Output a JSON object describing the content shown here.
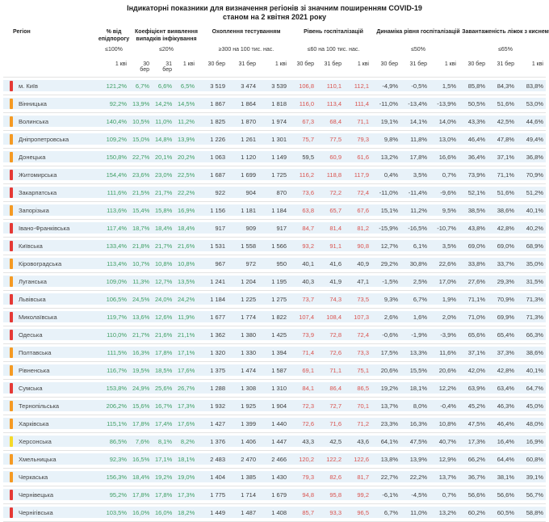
{
  "title": {
    "line1": "Індикаторні показники для визначення регіонів зі значним поширенням COVID-19",
    "line2": "станом на 2 квітня 2021 року"
  },
  "columns": {
    "region": "Регіон",
    "groups": [
      {
        "name": "% від епідпорогу",
        "threshold": "≤100%",
        "dates": [
          "1 кві"
        ]
      },
      {
        "name": "Коефіцієнт виявлення випадків інфікування",
        "threshold": "≤20%",
        "dates": [
          "30 бер",
          "31 бер",
          "1 кві"
        ]
      },
      {
        "name": "Охоплення тестуванням",
        "threshold": "≥300 на 100 тис. нас.",
        "dates": [
          "30 бер",
          "31 бер",
          "1 кві"
        ]
      },
      {
        "name": "Рівень госпіталізацій",
        "threshold": "≤60 на 100 тис. нас.",
        "dates": [
          "30 бер",
          "31 бер",
          "1 кві"
        ]
      },
      {
        "name": "Динаміка рівня госпіталізацій",
        "threshold": "≤50%",
        "dates": [
          "30 бер",
          "31 бер",
          "1 кві"
        ]
      },
      {
        "name": "Завантаженість ліжок з киснем",
        "threshold": "≤65%",
        "dates": [
          "30 бер",
          "31 бер",
          "1 кві"
        ]
      }
    ]
  },
  "colors": {
    "marker_red": "#e53935",
    "marker_orange": "#f59a23",
    "marker_yellow": "#f5d928",
    "value_green": "#3d9e63",
    "value_red": "#d9534f",
    "row_band": "#e8f2f9"
  },
  "rows": [
    {
      "region": "м. Київ",
      "marker": "red",
      "epid": "121,2%",
      "coef": [
        "6,7%",
        "6,6%",
        "6,5%"
      ],
      "test": [
        "3 519",
        "3 474",
        "3 539"
      ],
      "hosp": [
        "106,8",
        "110,1",
        "112,1"
      ],
      "hosp_alert": [
        true,
        true,
        true
      ],
      "dyn": [
        "-4,9%",
        "-0,5%",
        "1,5%"
      ],
      "load": [
        "85,8%",
        "84,3%",
        "83,8%"
      ]
    },
    {
      "region": "Вінницька",
      "marker": "orange",
      "epid": "92,2%",
      "coef": [
        "13,9%",
        "14,2%",
        "14,5%"
      ],
      "test": [
        "1 867",
        "1 864",
        "1 818"
      ],
      "hosp": [
        "116,0",
        "113,4",
        "111,4"
      ],
      "hosp_alert": [
        true,
        true,
        true
      ],
      "dyn": [
        "-11,0%",
        "-13,4%",
        "-13,9%"
      ],
      "load": [
        "50,5%",
        "51,6%",
        "53,0%"
      ]
    },
    {
      "region": "Волинська",
      "marker": "orange",
      "epid": "140,4%",
      "coef": [
        "10,5%",
        "11,0%",
        "11,2%"
      ],
      "test": [
        "1 825",
        "1 870",
        "1 974"
      ],
      "hosp": [
        "67,3",
        "68,4",
        "71,1"
      ],
      "hosp_alert": [
        true,
        true,
        true
      ],
      "dyn": [
        "19,1%",
        "14,1%",
        "14,0%"
      ],
      "load": [
        "43,3%",
        "42,5%",
        "44,6%"
      ]
    },
    {
      "region": "Дніпропетровська",
      "marker": "orange",
      "epid": "109,2%",
      "coef": [
        "15,0%",
        "14,8%",
        "13,9%"
      ],
      "test": [
        "1 226",
        "1 261",
        "1 301"
      ],
      "hosp": [
        "75,7",
        "77,5",
        "79,3"
      ],
      "hosp_alert": [
        true,
        true,
        true
      ],
      "dyn": [
        "9,8%",
        "11,8%",
        "13,0%"
      ],
      "load": [
        "46,4%",
        "47,8%",
        "49,4%"
      ]
    },
    {
      "region": "Донецька",
      "marker": "orange",
      "epid": "150,8%",
      "coef": [
        "22,7%",
        "20,1%",
        "20,2%"
      ],
      "test": [
        "1 063",
        "1 120",
        "1 149"
      ],
      "hosp": [
        "59,5",
        "60,9",
        "61,6"
      ],
      "hosp_alert": [
        false,
        true,
        true
      ],
      "dyn": [
        "13,2%",
        "17,8%",
        "16,6%"
      ],
      "load": [
        "36,4%",
        "37,1%",
        "36,8%"
      ]
    },
    {
      "region": "Житомирська",
      "marker": "red",
      "epid": "154,4%",
      "coef": [
        "23,6%",
        "23,0%",
        "22,5%"
      ],
      "test": [
        "1 687",
        "1 699",
        "1 725"
      ],
      "hosp": [
        "116,2",
        "118,8",
        "117,9"
      ],
      "hosp_alert": [
        true,
        true,
        true
      ],
      "dyn": [
        "0,4%",
        "3,5%",
        "0,7%"
      ],
      "load": [
        "73,9%",
        "71,1%",
        "70,9%"
      ]
    },
    {
      "region": "Закарпатська",
      "marker": "red",
      "epid": "111,6%",
      "coef": [
        "21,5%",
        "21,7%",
        "22,2%"
      ],
      "test": [
        "922",
        "904",
        "870"
      ],
      "hosp": [
        "73,6",
        "72,2",
        "72,4"
      ],
      "hosp_alert": [
        true,
        true,
        true
      ],
      "dyn": [
        "-11,0%",
        "-11,4%",
        "-9,6%"
      ],
      "load": [
        "52,1%",
        "51,6%",
        "51,2%"
      ]
    },
    {
      "region": "Запорізька",
      "marker": "orange",
      "epid": "113,6%",
      "coef": [
        "15,4%",
        "15,8%",
        "16,9%"
      ],
      "test": [
        "1 156",
        "1 181",
        "1 184"
      ],
      "hosp": [
        "63,8",
        "65,7",
        "67,6"
      ],
      "hosp_alert": [
        true,
        true,
        true
      ],
      "dyn": [
        "15,1%",
        "11,2%",
        "9,5%"
      ],
      "load": [
        "38,5%",
        "38,6%",
        "40,1%"
      ]
    },
    {
      "region": "Івано-Франківська",
      "marker": "red",
      "epid": "117,4%",
      "coef": [
        "18,7%",
        "18,4%",
        "18,4%"
      ],
      "test": [
        "917",
        "909",
        "917"
      ],
      "hosp": [
        "84,7",
        "81,4",
        "81,2"
      ],
      "hosp_alert": [
        true,
        true,
        true
      ],
      "dyn": [
        "-15,9%",
        "-16,5%",
        "-10,7%"
      ],
      "load": [
        "43,8%",
        "42,8%",
        "40,2%"
      ]
    },
    {
      "region": "Київська",
      "marker": "red",
      "epid": "133,4%",
      "coef": [
        "21,8%",
        "21,7%",
        "21,6%"
      ],
      "test": [
        "1 531",
        "1 558",
        "1 566"
      ],
      "hosp": [
        "93,2",
        "91,1",
        "90,8"
      ],
      "hosp_alert": [
        true,
        true,
        true
      ],
      "dyn": [
        "12,7%",
        "6,1%",
        "3,5%"
      ],
      "load": [
        "69,0%",
        "69,0%",
        "68,9%"
      ]
    },
    {
      "region": "Кіровоградська",
      "marker": "orange",
      "epid": "113,4%",
      "coef": [
        "10,7%",
        "10,8%",
        "10,8%"
      ],
      "test": [
        "967",
        "972",
        "950"
      ],
      "hosp": [
        "40,1",
        "41,6",
        "40,9"
      ],
      "hosp_alert": [
        false,
        false,
        false
      ],
      "dyn": [
        "29,2%",
        "30,8%",
        "22,6%"
      ],
      "load": [
        "33,8%",
        "33,7%",
        "35,0%"
      ]
    },
    {
      "region": "Луганська",
      "marker": "orange",
      "epid": "109,0%",
      "coef": [
        "11,3%",
        "12,7%",
        "13,5%"
      ],
      "test": [
        "1 241",
        "1 204",
        "1 195"
      ],
      "hosp": [
        "40,3",
        "41,9",
        "47,1"
      ],
      "hosp_alert": [
        false,
        false,
        false
      ],
      "dyn": [
        "-1,5%",
        "2,5%",
        "17,0%"
      ],
      "load": [
        "27,6%",
        "29,3%",
        "31,5%"
      ]
    },
    {
      "region": "Львівська",
      "marker": "red",
      "epid": "106,5%",
      "coef": [
        "24,5%",
        "24,0%",
        "24,2%"
      ],
      "test": [
        "1 184",
        "1 225",
        "1 275"
      ],
      "hosp": [
        "73,7",
        "74,3",
        "73,5"
      ],
      "hosp_alert": [
        true,
        true,
        true
      ],
      "dyn": [
        "9,3%",
        "6,7%",
        "1,9%"
      ],
      "load": [
        "71,1%",
        "70,9%",
        "71,3%"
      ]
    },
    {
      "region": "Миколаївська",
      "marker": "red",
      "epid": "119,7%",
      "coef": [
        "13,6%",
        "12,6%",
        "11,9%"
      ],
      "test": [
        "1 677",
        "1 774",
        "1 822"
      ],
      "hosp": [
        "107,4",
        "108,4",
        "107,3"
      ],
      "hosp_alert": [
        true,
        true,
        true
      ],
      "dyn": [
        "2,6%",
        "1,6%",
        "2,0%"
      ],
      "load": [
        "71,0%",
        "69,9%",
        "71,3%"
      ]
    },
    {
      "region": "Одеська",
      "marker": "red",
      "epid": "110,0%",
      "coef": [
        "21,7%",
        "21,6%",
        "21,1%"
      ],
      "test": [
        "1 362",
        "1 380",
        "1 425"
      ],
      "hosp": [
        "73,9",
        "72,8",
        "72,4"
      ],
      "hosp_alert": [
        true,
        true,
        true
      ],
      "dyn": [
        "-0,6%",
        "-1,9%",
        "-3,9%"
      ],
      "load": [
        "65,6%",
        "65,4%",
        "66,3%"
      ]
    },
    {
      "region": "Полтавська",
      "marker": "orange",
      "epid": "111,5%",
      "coef": [
        "16,3%",
        "17,8%",
        "17,1%"
      ],
      "test": [
        "1 320",
        "1 330",
        "1 394"
      ],
      "hosp": [
        "71,4",
        "72,6",
        "73,3"
      ],
      "hosp_alert": [
        true,
        true,
        true
      ],
      "dyn": [
        "17,5%",
        "13,3%",
        "11,6%"
      ],
      "load": [
        "37,1%",
        "37,3%",
        "38,6%"
      ]
    },
    {
      "region": "Рівненська",
      "marker": "orange",
      "epid": "116,7%",
      "coef": [
        "19,5%",
        "18,5%",
        "17,6%"
      ],
      "test": [
        "1 375",
        "1 474",
        "1 587"
      ],
      "hosp": [
        "69,1",
        "71,1",
        "75,1"
      ],
      "hosp_alert": [
        true,
        true,
        true
      ],
      "dyn": [
        "20,6%",
        "15,5%",
        "20,6%"
      ],
      "load": [
        "42,0%",
        "42,8%",
        "40,1%"
      ]
    },
    {
      "region": "Сумська",
      "marker": "red",
      "epid": "153,8%",
      "coef": [
        "24,9%",
        "25,6%",
        "26,7%"
      ],
      "test": [
        "1 288",
        "1 308",
        "1 310"
      ],
      "hosp": [
        "84,1",
        "86,4",
        "86,5"
      ],
      "hosp_alert": [
        true,
        true,
        true
      ],
      "dyn": [
        "19,2%",
        "18,1%",
        "12,2%"
      ],
      "load": [
        "63,9%",
        "63,4%",
        "64,7%"
      ]
    },
    {
      "region": "Тернопільська",
      "marker": "orange",
      "epid": "206,2%",
      "coef": [
        "15,6%",
        "16,7%",
        "17,3%"
      ],
      "test": [
        "1 932",
        "1 925",
        "1 904"
      ],
      "hosp": [
        "72,3",
        "72,7",
        "70,1"
      ],
      "hosp_alert": [
        true,
        true,
        true
      ],
      "dyn": [
        "13,7%",
        "8,0%",
        "-0,4%"
      ],
      "load": [
        "45,2%",
        "46,3%",
        "45,0%"
      ]
    },
    {
      "region": "Харківська",
      "marker": "orange",
      "epid": "115,1%",
      "coef": [
        "17,8%",
        "17,4%",
        "17,6%"
      ],
      "test": [
        "1 427",
        "1 399",
        "1 440"
      ],
      "hosp": [
        "72,6",
        "71,6",
        "71,2"
      ],
      "hosp_alert": [
        true,
        true,
        true
      ],
      "dyn": [
        "23,3%",
        "16,3%",
        "10,8%"
      ],
      "load": [
        "47,5%",
        "46,4%",
        "48,0%"
      ]
    },
    {
      "region": "Херсонська",
      "marker": "yellow",
      "epid": "86,5%",
      "coef": [
        "7,6%",
        "8,1%",
        "8,2%"
      ],
      "test": [
        "1 376",
        "1 406",
        "1 447"
      ],
      "hosp": [
        "43,3",
        "42,5",
        "43,6"
      ],
      "hosp_alert": [
        false,
        false,
        false
      ],
      "dyn": [
        "64,1%",
        "47,5%",
        "40,7%"
      ],
      "load": [
        "17,3%",
        "16,4%",
        "16,9%"
      ]
    },
    {
      "region": "Хмельницька",
      "marker": "orange",
      "epid": "92,3%",
      "coef": [
        "16,5%",
        "17,1%",
        "18,1%"
      ],
      "test": [
        "2 483",
        "2 470",
        "2 466"
      ],
      "hosp": [
        "120,2",
        "122,2",
        "122,6"
      ],
      "hosp_alert": [
        true,
        true,
        true
      ],
      "dyn": [
        "13,8%",
        "13,9%",
        "12,9%"
      ],
      "load": [
        "66,2%",
        "64,4%",
        "60,8%"
      ]
    },
    {
      "region": "Черкаська",
      "marker": "orange",
      "epid": "156,3%",
      "coef": [
        "18,4%",
        "19,2%",
        "19,0%"
      ],
      "test": [
        "1 404",
        "1 385",
        "1 430"
      ],
      "hosp": [
        "79,3",
        "82,6",
        "81,7"
      ],
      "hosp_alert": [
        true,
        true,
        true
      ],
      "dyn": [
        "22,7%",
        "22,2%",
        "13,7%"
      ],
      "load": [
        "36,7%",
        "38,1%",
        "39,1%"
      ]
    },
    {
      "region": "Чернівецька",
      "marker": "red",
      "epid": "95,2%",
      "coef": [
        "17,8%",
        "17,8%",
        "17,3%"
      ],
      "test": [
        "1 775",
        "1 714",
        "1 679"
      ],
      "hosp": [
        "94,8",
        "95,8",
        "99,2"
      ],
      "hosp_alert": [
        true,
        true,
        true
      ],
      "dyn": [
        "-6,1%",
        "-4,5%",
        "0,7%"
      ],
      "load": [
        "56,6%",
        "56,6%",
        "56,7%"
      ]
    },
    {
      "region": "Чернігівська",
      "marker": "red",
      "epid": "103,5%",
      "coef": [
        "16,0%",
        "16,0%",
        "18,2%"
      ],
      "test": [
        "1 449",
        "1 487",
        "1 408"
      ],
      "hosp": [
        "85,7",
        "93,3",
        "96,5"
      ],
      "hosp_alert": [
        true,
        true,
        true
      ],
      "dyn": [
        "6,7%",
        "11,0%",
        "13,2%"
      ],
      "load": [
        "60,2%",
        "60,5%",
        "58,8%"
      ]
    }
  ]
}
